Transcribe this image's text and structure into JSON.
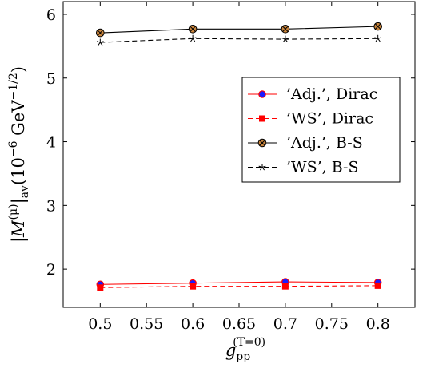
{
  "chart_data": {
    "type": "line",
    "x": [
      0.5,
      0.6,
      0.7,
      0.8
    ],
    "xlim": [
      0.46,
      0.84
    ],
    "ylim": [
      1.4,
      6.2
    ],
    "xticks": [
      "0.5",
      "0.55",
      "0.6",
      "0.65",
      "0.7",
      "0.75",
      "0.8"
    ],
    "yticks": [
      "2",
      "3",
      "4",
      "5",
      "6"
    ],
    "xlabel": {
      "main": "g",
      "sub": "pp",
      "sup": "(T=0)"
    },
    "ylabel": {
      "pre": "|M",
      "sup": "(μ)",
      "mid": "|",
      "sub": "av",
      "post": "(10",
      "exp1": "−6",
      "unit": " GeV",
      "exp2": "−1/2",
      "close": ")"
    },
    "legend_position": "right",
    "series": [
      {
        "name": "’Adj.’, Dirac",
        "values": [
          1.76,
          1.78,
          1.8,
          1.79
        ],
        "color": "#ff0000",
        "dash": "solid",
        "marker": "circle-blue"
      },
      {
        "name": "’WS’, Dirac",
        "values": [
          1.71,
          1.73,
          1.73,
          1.74
        ],
        "color": "#ff0000",
        "dash": "dashed",
        "marker": "square-red"
      },
      {
        "name": "’Adj.’, B-S",
        "values": [
          5.71,
          5.77,
          5.77,
          5.81
        ],
        "color": "#000000",
        "dash": "solid",
        "marker": "otimes"
      },
      {
        "name": "’WS’, B-S",
        "values": [
          5.56,
          5.62,
          5.61,
          5.62
        ],
        "color": "#000000",
        "dash": "dashed",
        "marker": "star"
      }
    ]
  }
}
